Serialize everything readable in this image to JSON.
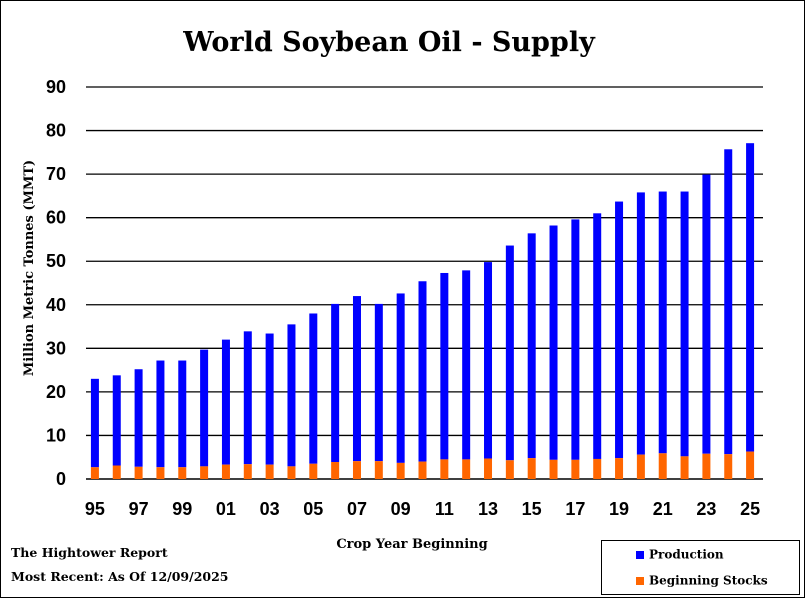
{
  "chart_data": {
    "type": "bar",
    "stacked": true,
    "title": "World Soybean Oil - Supply",
    "xlabel": "Crop Year Beginning",
    "ylabel": "Million Metric Tonnes (MMT)",
    "ylim": [
      0,
      90
    ],
    "yticks": [
      0,
      10,
      20,
      30,
      40,
      50,
      60,
      70,
      80,
      90
    ],
    "grid": "horizontal",
    "legend": "bottom-right",
    "categories": [
      "95",
      "96",
      "97",
      "98",
      "99",
      "00",
      "01",
      "02",
      "03",
      "04",
      "05",
      "06",
      "07",
      "08",
      "09",
      "10",
      "11",
      "12",
      "13",
      "14",
      "15",
      "16",
      "17",
      "18",
      "19",
      "20",
      "21",
      "22",
      "23",
      "24",
      "25"
    ],
    "xtick_labels": [
      "95",
      "97",
      "99",
      "01",
      "03",
      "05",
      "07",
      "09",
      "11",
      "13",
      "15",
      "17",
      "19",
      "21",
      "23",
      "25"
    ],
    "series": [
      {
        "name": "Beginning Stocks",
        "color": "#ff6600",
        "values": [
          2.7,
          3.1,
          2.8,
          2.7,
          2.7,
          2.9,
          3.3,
          3.4,
          3.3,
          2.9,
          3.5,
          3.9,
          4.1,
          4.1,
          3.7,
          4.0,
          4.5,
          4.5,
          4.7,
          4.3,
          4.8,
          4.4,
          4.4,
          4.6,
          4.8,
          5.6,
          5.9,
          5.2,
          5.8,
          5.7,
          6.3
        ]
      },
      {
        "name": "Production",
        "color": "#0000ff",
        "values": [
          20.3,
          20.7,
          22.4,
          24.5,
          24.5,
          26.8,
          28.7,
          30.5,
          30.1,
          32.6,
          34.5,
          36.3,
          37.9,
          36.1,
          38.9,
          41.4,
          42.8,
          43.4,
          45.1,
          49.3,
          51.6,
          53.8,
          55.2,
          56.4,
          58.9,
          60.2,
          60.1,
          60.8,
          64.1,
          70.0,
          70.8
        ]
      }
    ]
  },
  "footer": {
    "source": "The Hightower Report",
    "date": "Most Recent: As Of 12/09/2025"
  }
}
